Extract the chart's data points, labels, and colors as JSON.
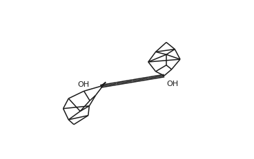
{
  "background_color": "#ffffff",
  "line_color": "#1a1a1a",
  "line_width": 1.1,
  "text_color": "#1a1a1a",
  "oh_fontsize": 8,
  "fig_width": 3.68,
  "fig_height": 2.32,
  "dpi": 100
}
